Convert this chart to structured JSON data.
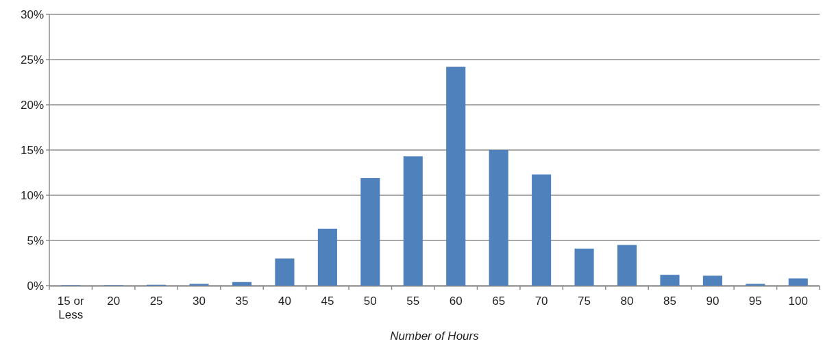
{
  "chart_data": {
    "type": "bar",
    "xlabel": "Number of Hours",
    "categories": [
      "15 or Less",
      "20",
      "25",
      "30",
      "35",
      "40",
      "45",
      "50",
      "55",
      "60",
      "65",
      "70",
      "75",
      "80",
      "85",
      "90",
      "95",
      "100"
    ],
    "values": [
      0.05,
      0.05,
      0.1,
      0.2,
      0.4,
      3.0,
      6.3,
      11.9,
      14.3,
      24.2,
      15.0,
      12.3,
      4.1,
      4.5,
      1.2,
      1.1,
      0.2,
      0.8
    ],
    "color": "#4f81bd",
    "ylim": [
      0,
      30
    ],
    "yticks": [
      {
        "value": 0,
        "label": "0%"
      },
      {
        "value": 5,
        "label": "5%"
      },
      {
        "value": 10,
        "label": "10%"
      },
      {
        "value": 15,
        "label": "15%"
      },
      {
        "value": 20,
        "label": "20%"
      },
      {
        "value": 25,
        "label": "25%"
      },
      {
        "value": 30,
        "label": "30%"
      }
    ],
    "grid": "y"
  }
}
